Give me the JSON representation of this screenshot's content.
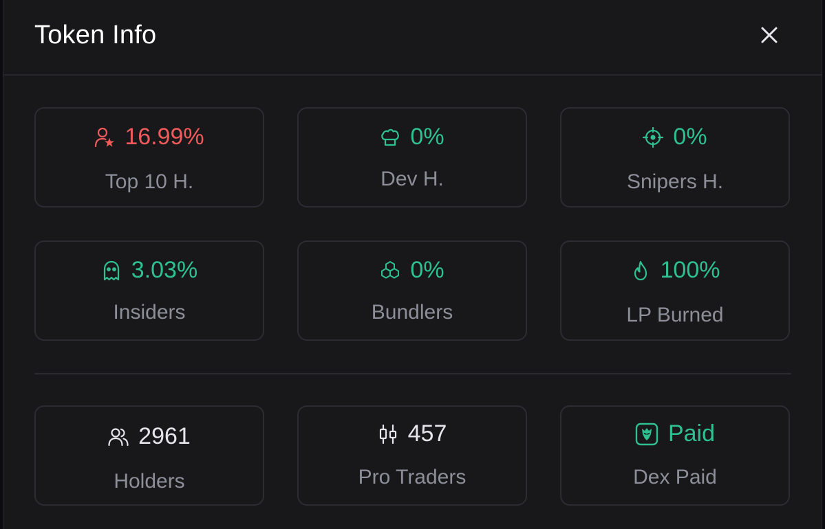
{
  "header": {
    "title": "Token Info"
  },
  "colors": {
    "red": "#ef5b5b",
    "green": "#2fc08f",
    "white": "#e6e6ea",
    "label": "#8e8e99"
  },
  "cards": [
    {
      "value": "16.99%",
      "label": "Top 10 H.",
      "icon": "user-star-icon",
      "color": "red"
    },
    {
      "value": "0%",
      "label": "Dev H.",
      "icon": "chef-hat-icon",
      "color": "green"
    },
    {
      "value": "0%",
      "label": "Snipers H.",
      "icon": "crosshair-icon",
      "color": "green"
    },
    {
      "value": "3.03%",
      "label": "Insiders",
      "icon": "ghost-icon",
      "color": "green"
    },
    {
      "value": "0%",
      "label": "Bundlers",
      "icon": "boxes-icon",
      "color": "green"
    },
    {
      "value": "100%",
      "label": "LP Burned",
      "icon": "flame-icon",
      "color": "green"
    },
    {
      "value": "2961",
      "label": "Holders",
      "icon": "users-icon",
      "color": "white"
    },
    {
      "value": "457",
      "label": "Pro Traders",
      "icon": "candlestick-icon",
      "color": "white"
    },
    {
      "value": "Paid",
      "label": "Dex Paid",
      "icon": "dex-badge-icon",
      "color": "green"
    }
  ]
}
